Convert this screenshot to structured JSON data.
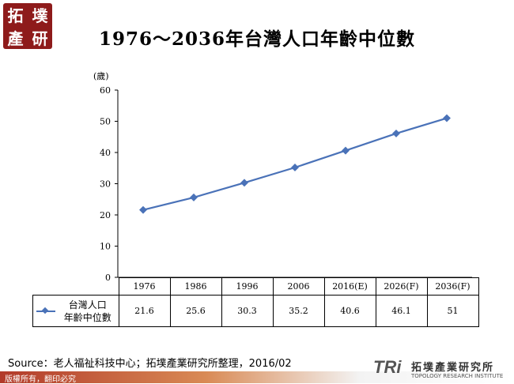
{
  "logo": {
    "chars": [
      "拓",
      "墣",
      "產",
      "研"
    ]
  },
  "chart_data": {
    "type": "line",
    "title": "1976～2036年台灣人口年齡中位數",
    "unit_label": "(歲)",
    "categories": [
      "1976",
      "1986",
      "1996",
      "2006",
      "2016(E)",
      "2026(F)",
      "2036(F)"
    ],
    "series": [
      {
        "name": "台灣人口年齡中位數",
        "values": [
          21.6,
          25.6,
          30.3,
          35.2,
          40.6,
          46.1,
          51
        ],
        "value_labels": [
          "21.6",
          "25.6",
          "30.3",
          "35.2",
          "40.6",
          "46.1",
          "51"
        ],
        "color": "#4a72b8"
      }
    ],
    "ylim": [
      0,
      60
    ],
    "yticks": [
      0,
      10,
      20,
      30,
      40,
      50,
      60
    ],
    "grid": false,
    "data_table": true
  },
  "legend": {
    "line1": "台灣人口",
    "line2": "年齡中位數"
  },
  "source": "Source：老人福祉科技中心；拓墣產業研究所整理，2016/02",
  "copyright": "版權所有，翻印必究",
  "brand": {
    "mark": "TRi",
    "cn": "拓墣產業研究所",
    "en": "TOPOLOGY RESEARCH INSTITUTE"
  }
}
